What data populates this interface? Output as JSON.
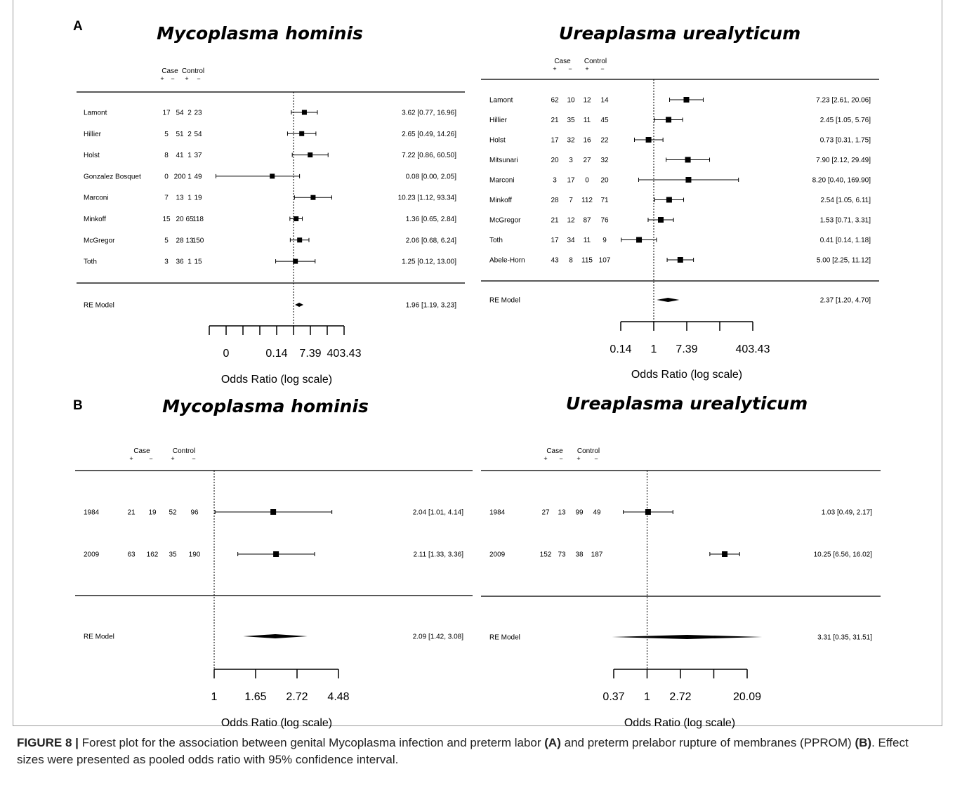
{
  "figure_caption": {
    "label": "FIGURE 8 |",
    "text_before_a": "Forest plot for the association between genital Mycoplasma infection and preterm labor",
    "marker_a": "(A)",
    "text_between": "and preterm prelabor rupture of membranes (PPROM)",
    "marker_b": "(B)",
    "text_after": ". Effect sizes were presented as pooled odds ratio with 95% confidence interval."
  },
  "panel_labels": {
    "a": "A",
    "b": "B"
  },
  "colors": {
    "ink": "#000000",
    "rule": "#222222",
    "frame": "#9a9a9a",
    "caption": "#222222"
  },
  "chart_data": [
    {
      "type": "forest",
      "panel": "A",
      "title": "Mycoplasma hominis",
      "col_headers": {
        "case": "Case",
        "control": "Control",
        "signs": [
          "+",
          "−",
          "+",
          "−"
        ]
      },
      "studies": [
        {
          "name": "Lamont",
          "counts": [
            "17",
            "54",
            "2",
            "23"
          ],
          "or": 3.62,
          "lo": 0.77,
          "hi": 16.96,
          "label": "3.62 [0.77, 16.96]"
        },
        {
          "name": "Hillier",
          "counts": [
            "5",
            "51",
            "2",
            "54"
          ],
          "or": 2.65,
          "lo": 0.49,
          "hi": 14.26,
          "label": "2.65 [0.49, 14.26]"
        },
        {
          "name": "Holst",
          "counts": [
            "8",
            "41",
            "1",
            "37"
          ],
          "or": 7.22,
          "lo": 0.86,
          "hi": 60.5,
          "label": "7.22 [0.86, 60.50]"
        },
        {
          "name": "Gonzalez Bosquet",
          "counts": [
            "0",
            "200",
            "1",
            "49"
          ],
          "or": 0.08,
          "lo": 0.0,
          "hi": 2.05,
          "label": "0.08 [0.00, 2.05]"
        },
        {
          "name": "Marconi",
          "counts": [
            "7",
            "13",
            "1",
            "19"
          ],
          "or": 10.23,
          "lo": 1.12,
          "hi": 93.34,
          "label": "10.23 [1.12, 93.34]"
        },
        {
          "name": "Minkoff",
          "counts": [
            "15",
            "20",
            "65",
            "118"
          ],
          "or": 1.36,
          "lo": 0.65,
          "hi": 2.84,
          "label": "1.36 [0.65, 2.84]"
        },
        {
          "name": "McGregor",
          "counts": [
            "5",
            "28",
            "13",
            "150"
          ],
          "or": 2.06,
          "lo": 0.68,
          "hi": 6.24,
          "label": "2.06 [0.68, 6.24]"
        },
        {
          "name": "Toth",
          "counts": [
            "3",
            "36",
            "1",
            "15"
          ],
          "or": 1.25,
          "lo": 0.12,
          "hi": 13.0,
          "label": "1.25 [0.12, 13.00]"
        }
      ],
      "pooled": {
        "name": "RE Model",
        "or": 1.96,
        "lo": 1.19,
        "hi": 3.23,
        "label": "1.96 [1.19, 3.23]"
      },
      "x_scale": "log",
      "xlim_ln": [
        -10,
        6
      ],
      "ticks_ln": [
        -10,
        -8,
        -6,
        -4,
        -2,
        0,
        2,
        4,
        6
      ],
      "tick_labels": [
        {
          "ln": -8,
          "text": "0"
        },
        {
          "ln": -2,
          "text": "0.14"
        },
        {
          "ln": 2,
          "text": "7.39"
        },
        {
          "ln": 6,
          "text": "403.43"
        }
      ],
      "xlabel": "Odds Ratio (log scale)"
    },
    {
      "type": "forest",
      "panel": "A",
      "title": "Ureaplasma urealyticum",
      "col_headers": {
        "case": "Case",
        "control": "Control",
        "signs": [
          "+",
          "−",
          "+",
          "−"
        ]
      },
      "studies": [
        {
          "name": "Lamont",
          "counts": [
            "62",
            "10",
            "12",
            "14"
          ],
          "or": 7.23,
          "lo": 2.61,
          "hi": 20.06,
          "label": "7.23 [2.61, 20.06]"
        },
        {
          "name": "Hillier",
          "counts": [
            "21",
            "35",
            "11",
            "45"
          ],
          "or": 2.45,
          "lo": 1.05,
          "hi": 5.76,
          "label": "2.45 [1.05, 5.76]"
        },
        {
          "name": "Holst",
          "counts": [
            "17",
            "32",
            "16",
            "22"
          ],
          "or": 0.73,
          "lo": 0.31,
          "hi": 1.75,
          "label": "0.73 [0.31, 1.75]"
        },
        {
          "name": "Mitsunari",
          "counts": [
            "20",
            "3",
            "27",
            "32"
          ],
          "or": 7.9,
          "lo": 2.12,
          "hi": 29.49,
          "label": "7.90 [2.12, 29.49]"
        },
        {
          "name": "Marconi",
          "counts": [
            "3",
            "17",
            "0",
            "20"
          ],
          "or": 8.2,
          "lo": 0.4,
          "hi": 169.9,
          "label": "8.20 [0.40, 169.90]"
        },
        {
          "name": "Minkoff",
          "counts": [
            "28",
            "7",
            "112",
            "71"
          ],
          "or": 2.54,
          "lo": 1.05,
          "hi": 6.11,
          "label": "2.54 [1.05, 6.11]"
        },
        {
          "name": "McGregor",
          "counts": [
            "21",
            "12",
            "87",
            "76"
          ],
          "or": 1.53,
          "lo": 0.71,
          "hi": 3.31,
          "label": "1.53 [0.71, 3.31]"
        },
        {
          "name": "Toth",
          "counts": [
            "17",
            "34",
            "11",
            "9"
          ],
          "or": 0.41,
          "lo": 0.14,
          "hi": 1.18,
          "label": "0.41 [0.14, 1.18]"
        },
        {
          "name": "Abele-Horn",
          "counts": [
            "43",
            "8",
            "115",
            "107"
          ],
          "or": 5.0,
          "lo": 2.25,
          "hi": 11.12,
          "label": "5.00 [2.25, 11.12]"
        }
      ],
      "pooled": {
        "name": "RE Model",
        "or": 2.37,
        "lo": 1.2,
        "hi": 4.7,
        "label": "2.37 [1.20, 4.70]"
      },
      "x_scale": "log",
      "xlim_ln": [
        -2,
        6
      ],
      "ticks_ln": [
        -2,
        0,
        2,
        4,
        6
      ],
      "tick_labels": [
        {
          "ln": -2,
          "text": "0.14"
        },
        {
          "ln": 0,
          "text": "1"
        },
        {
          "ln": 2,
          "text": "7.39"
        },
        {
          "ln": 6,
          "text": "403.43"
        }
      ],
      "xlabel": "Odds Ratio (log scale)"
    },
    {
      "type": "forest",
      "panel": "B",
      "title": "Mycoplasma hominis",
      "col_headers": {
        "case": "Case",
        "control": "Control",
        "signs": [
          "+",
          "−",
          "+",
          "−"
        ]
      },
      "studies": [
        {
          "name": "1984",
          "counts": [
            "21",
            "19",
            "52",
            "96"
          ],
          "or": 2.04,
          "lo": 1.01,
          "hi": 4.14,
          "label": "2.04 [1.01, 4.14]"
        },
        {
          "name": "2009",
          "counts": [
            "63",
            "162",
            "35",
            "190"
          ],
          "or": 2.11,
          "lo": 1.33,
          "hi": 3.36,
          "label": "2.11 [1.33, 3.36]"
        }
      ],
      "pooled": {
        "name": "RE Model",
        "or": 2.09,
        "lo": 1.42,
        "hi": 3.08,
        "label": "2.09 [1.42, 3.08]"
      },
      "x_scale": "log",
      "xlim_ln": [
        0,
        1.5
      ],
      "ticks_ln": [
        0,
        0.5,
        1,
        1.5
      ],
      "tick_labels": [
        {
          "ln": 0,
          "text": "1"
        },
        {
          "ln": 0.5,
          "text": "1.65"
        },
        {
          "ln": 1,
          "text": "2.72"
        },
        {
          "ln": 1.5,
          "text": "4.48"
        }
      ],
      "xlabel": "Odds Ratio (log scale)"
    },
    {
      "type": "forest",
      "panel": "B",
      "title": "Ureaplasma urealyticum",
      "col_headers": {
        "case": "Case",
        "control": "Control",
        "signs": [
          "+",
          "−",
          "+",
          "−"
        ]
      },
      "studies": [
        {
          "name": "1984",
          "counts": [
            "27",
            "13",
            "99",
            "49"
          ],
          "or": 1.03,
          "lo": 0.49,
          "hi": 2.17,
          "label": "1.03 [0.49, 2.17]"
        },
        {
          "name": "2009",
          "counts": [
            "152",
            "73",
            "38",
            "187"
          ],
          "or": 10.25,
          "lo": 6.56,
          "hi": 16.02,
          "label": "10.25 [6.56, 16.02]"
        }
      ],
      "pooled": {
        "name": "RE Model",
        "or": 3.31,
        "lo": 0.35,
        "hi": 31.51,
        "label": "3.31 [0.35, 31.51]"
      },
      "x_scale": "log",
      "xlim_ln": [
        -1,
        3
      ],
      "ticks_ln": [
        -1,
        0,
        1,
        2,
        3
      ],
      "tick_labels": [
        {
          "ln": -1,
          "text": "0.37"
        },
        {
          "ln": 0,
          "text": "1"
        },
        {
          "ln": 1,
          "text": "2.72"
        },
        {
          "ln": 3,
          "text": "20.09"
        }
      ],
      "xlabel": "Odds Ratio (log scale)"
    }
  ]
}
